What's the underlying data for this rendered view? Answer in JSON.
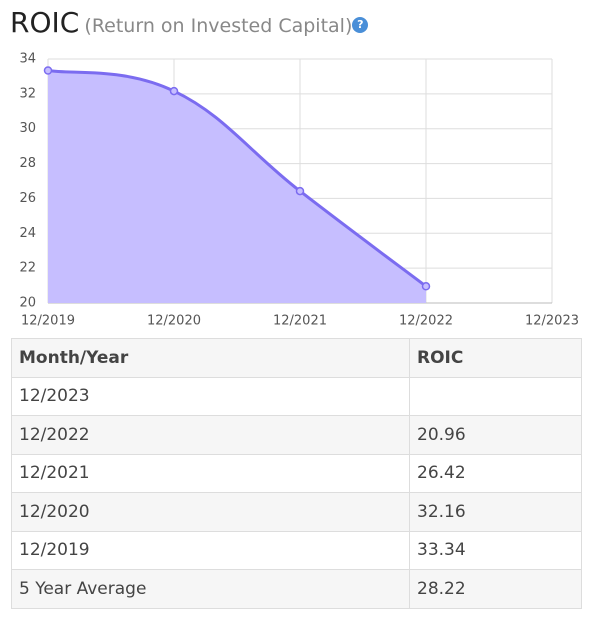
{
  "header": {
    "title": "ROIC",
    "subtitle": "(Return on Invested Capital)",
    "help": "?"
  },
  "chart_data": {
    "type": "area",
    "categories": [
      "12/2019",
      "12/2020",
      "12/2021",
      "12/2022",
      "12/2023"
    ],
    "values": [
      33.34,
      32.16,
      26.42,
      20.96,
      null
    ],
    "color": "#7b6cf0",
    "fill": "#c6beff",
    "ylim": [
      20,
      34
    ],
    "yticks": [
      20,
      22,
      24,
      26,
      28,
      30,
      32,
      34
    ],
    "grid": true
  },
  "table": {
    "header": [
      "Month/Year",
      "ROIC"
    ],
    "rows": [
      [
        "12/2023"
      ],
      [
        "12/2022",
        "20.96"
      ],
      [
        "12/2021",
        "26.42"
      ],
      [
        "12/2020",
        "32.16"
      ],
      [
        "12/2019",
        "33.34"
      ],
      [
        "5 Year Average",
        "28.22"
      ]
    ]
  }
}
